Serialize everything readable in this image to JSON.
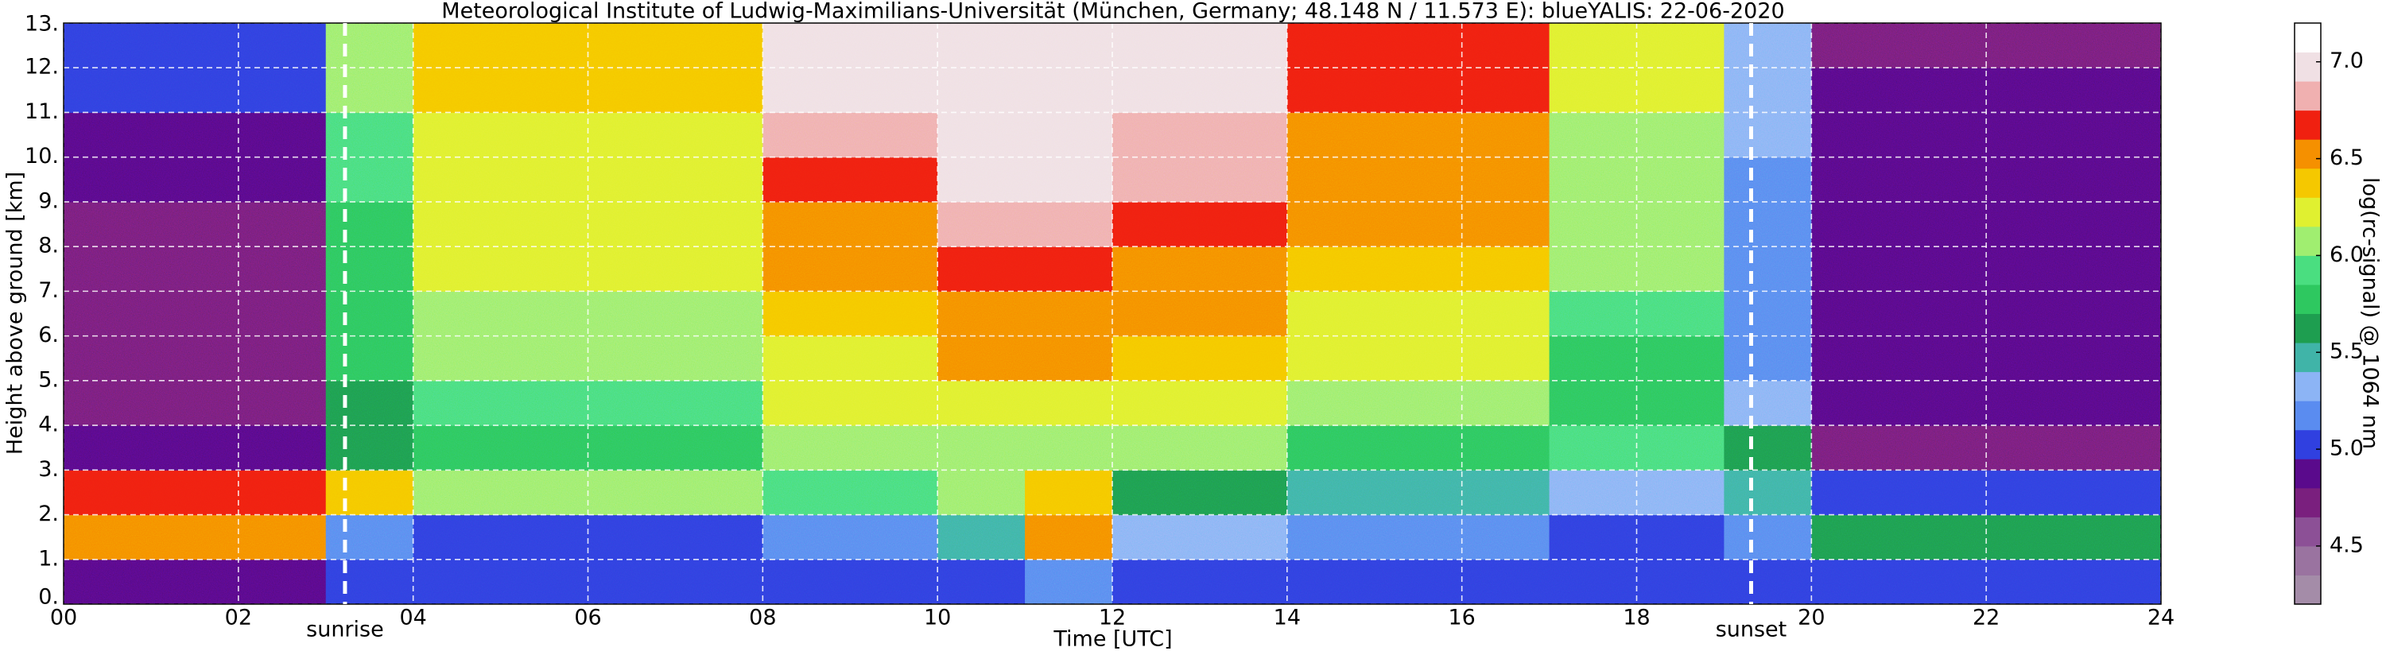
{
  "chart_data": {
    "type": "heatmap",
    "title": "Meteorological Institute of Ludwig-Maximilians-Universität (München, Germany; 48.148 N / 11.573 E):    blueYALIS: 22-06-2020",
    "xlabel": "Time [UTC]",
    "ylabel": "Height above ground [km]",
    "colorbar_label": "log(rc-signal) @ 1064 nm",
    "xlim": [
      0,
      24
    ],
    "ylim": [
      0,
      13
    ],
    "zlim": [
      4.2,
      7.2
    ],
    "xticks": [
      {
        "value": 0,
        "label": "00"
      },
      {
        "value": 2,
        "label": "02"
      },
      {
        "value": 4,
        "label": "04"
      },
      {
        "value": 6,
        "label": "06"
      },
      {
        "value": 8,
        "label": "08"
      },
      10,
      12,
      14,
      16,
      18,
      20,
      22,
      24
    ],
    "yticks": [
      {
        "value": 0,
        "label": "0."
      },
      {
        "value": 1,
        "label": "1."
      },
      {
        "value": 2,
        "label": "2."
      },
      {
        "value": 3,
        "label": "3."
      },
      {
        "value": 4,
        "label": "4."
      },
      {
        "value": 5,
        "label": "5."
      },
      {
        "value": 6,
        "label": "6."
      },
      {
        "value": 7,
        "label": "7."
      },
      {
        "value": 8,
        "label": "8."
      },
      {
        "value": 9,
        "label": "9."
      },
      {
        "value": 10,
        "label": "10."
      },
      {
        "value": 11,
        "label": "11."
      },
      {
        "value": 12,
        "label": "12."
      },
      {
        "value": 13,
        "label": "13."
      }
    ],
    "zticks": [
      {
        "value": 4.5,
        "label": "4.5"
      },
      {
        "value": 5,
        "label": "5.0"
      },
      {
        "value": 5.5,
        "label": "5.5"
      },
      {
        "value": 6,
        "label": "6.0"
      },
      {
        "value": 6.5,
        "label": "6.5"
      },
      {
        "value": 7,
        "label": "7.0"
      }
    ],
    "grid": true,
    "colormap": [
      "#a48ca8",
      "#9a73a0",
      "#8c5096",
      "#7a1f7e",
      "#5a0a8c",
      "#3040e0",
      "#5a8cf0",
      "#8cb4f5",
      "#40b4a8",
      "#1e9e50",
      "#2ec860",
      "#4ade80",
      "#a0ee70",
      "#e0f030",
      "#f5c800",
      "#f59000",
      "#f02010",
      "#f0b0b0",
      "#f0e0e4",
      "#ffffff"
    ],
    "annotations": [
      {
        "text": "sunrise",
        "x": 3.22
      },
      {
        "text": "sunset",
        "x": 19.31
      }
    ],
    "z": [
      [
        4.9,
        4.9,
        4.9,
        5.0,
        5.0,
        5.0,
        5.0,
        5.0,
        5.0,
        5.0,
        5.1,
        5.2,
        5.0,
        5.0,
        5.0,
        5.0,
        5.0,
        5.0,
        5.0,
        5.0,
        5.1,
        5.1,
        5.1,
        5.1
      ],
      [
        6.6,
        6.6,
        6.6,
        5.2,
        5.1,
        5.1,
        5.1,
        5.1,
        5.2,
        5.2,
        5.5,
        6.6,
        5.3,
        5.3,
        5.2,
        5.2,
        5.2,
        5.1,
        5.1,
        5.2,
        5.6,
        5.6,
        5.6,
        5.6
      ],
      [
        6.7,
        6.7,
        6.7,
        6.4,
        6.0,
        6.0,
        6.0,
        6.0,
        5.9,
        5.9,
        6.0,
        6.4,
        5.6,
        5.6,
        5.4,
        5.4,
        5.4,
        5.3,
        5.3,
        5.4,
        5.0,
        5.0,
        5.0,
        5.0
      ],
      [
        4.9,
        4.9,
        4.9,
        5.6,
        5.8,
        5.8,
        5.8,
        5.8,
        6.0,
        6.0,
        6.1,
        6.1,
        6.0,
        6.0,
        5.8,
        5.8,
        5.8,
        5.9,
        5.9,
        5.6,
        4.8,
        4.8,
        4.8,
        4.8
      ],
      [
        4.8,
        4.8,
        4.8,
        5.6,
        5.9,
        5.9,
        5.9,
        5.9,
        6.2,
        6.2,
        6.3,
        6.3,
        6.2,
        6.2,
        6.0,
        6.0,
        6.0,
        5.8,
        5.8,
        5.3,
        4.9,
        4.9,
        4.9,
        4.9
      ],
      [
        4.8,
        4.8,
        4.8,
        5.7,
        6.0,
        6.0,
        6.0,
        6.0,
        6.3,
        6.3,
        6.5,
        6.5,
        6.4,
        6.4,
        6.2,
        6.2,
        6.2,
        5.8,
        5.8,
        5.2,
        4.9,
        4.9,
        4.9,
        4.9
      ],
      [
        4.8,
        4.8,
        4.8,
        5.7,
        6.1,
        6.1,
        6.1,
        6.1,
        6.4,
        6.4,
        6.6,
        6.6,
        6.5,
        6.5,
        6.3,
        6.3,
        6.3,
        5.9,
        5.9,
        5.2,
        4.9,
        4.9,
        4.9,
        4.9
      ],
      [
        4.8,
        4.8,
        4.8,
        5.8,
        6.2,
        6.2,
        6.2,
        6.2,
        6.5,
        6.5,
        6.7,
        6.7,
        6.6,
        6.6,
        6.4,
        6.4,
        6.4,
        6.0,
        6.0,
        5.2,
        4.9,
        4.9,
        4.9,
        4.9
      ],
      [
        4.8,
        4.8,
        4.8,
        5.8,
        6.2,
        6.2,
        6.2,
        6.2,
        6.6,
        6.6,
        6.8,
        6.8,
        6.7,
        6.7,
        6.5,
        6.5,
        6.5,
        6.0,
        6.0,
        5.2,
        4.9,
        4.9,
        4.9,
        4.9
      ],
      [
        4.9,
        4.9,
        4.9,
        5.9,
        6.3,
        6.3,
        6.3,
        6.3,
        6.7,
        6.7,
        6.9,
        6.9,
        6.8,
        6.8,
        6.6,
        6.6,
        6.6,
        6.1,
        6.1,
        5.2,
        4.9,
        4.9,
        4.9,
        4.9
      ],
      [
        4.9,
        4.9,
        4.9,
        5.9,
        6.3,
        6.3,
        6.3,
        6.3,
        6.8,
        6.8,
        7.0,
        7.0,
        6.8,
        6.8,
        6.6,
        6.6,
        6.6,
        6.1,
        6.1,
        5.3,
        4.9,
        4.9,
        4.9,
        4.9
      ],
      [
        5.0,
        5.0,
        5.0,
        6.0,
        6.4,
        6.4,
        6.4,
        6.4,
        6.9,
        6.9,
        7.0,
        7.0,
        6.9,
        6.9,
        6.7,
        6.7,
        6.7,
        6.2,
        6.2,
        5.3,
        4.9,
        4.9,
        4.9,
        4.9
      ],
      [
        5.0,
        5.0,
        5.0,
        6.0,
        6.4,
        6.4,
        6.4,
        6.4,
        7.0,
        7.0,
        7.0,
        7.0,
        6.9,
        6.9,
        6.7,
        6.7,
        6.7,
        6.2,
        6.2,
        5.3,
        4.8,
        4.8,
        4.8,
        4.8
      ]
    ]
  }
}
